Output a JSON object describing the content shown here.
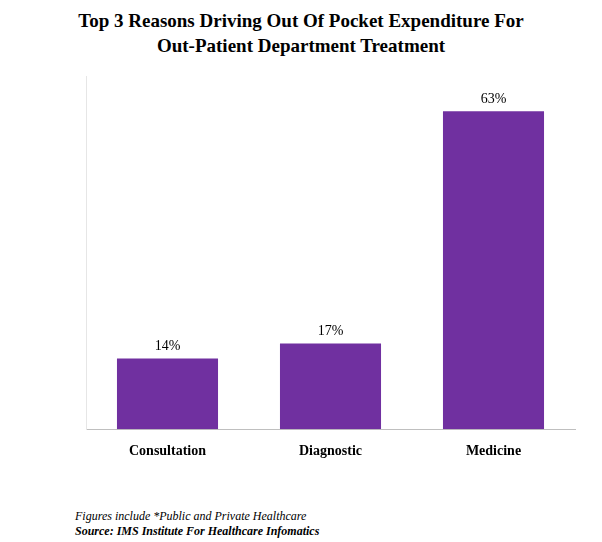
{
  "chart_data": {
    "type": "bar",
    "title": "Top 3 Reasons Driving Out Of Pocket Expenditure For Out-Patient Department Treatment",
    "categories": [
      "Consultation",
      "Diagnostic",
      "Medicine"
    ],
    "values": [
      14,
      17,
      63
    ],
    "value_labels": [
      "14%",
      "17%",
      "63%"
    ],
    "color": "#7030a0",
    "ylim": [
      0,
      70
    ],
    "grid": false,
    "data_labels": true,
    "tick_labels": "x",
    "note": "Figures include *Public and Private Healthcare",
    "source": "Source: IMS Institute For Healthcare Infomatics"
  }
}
